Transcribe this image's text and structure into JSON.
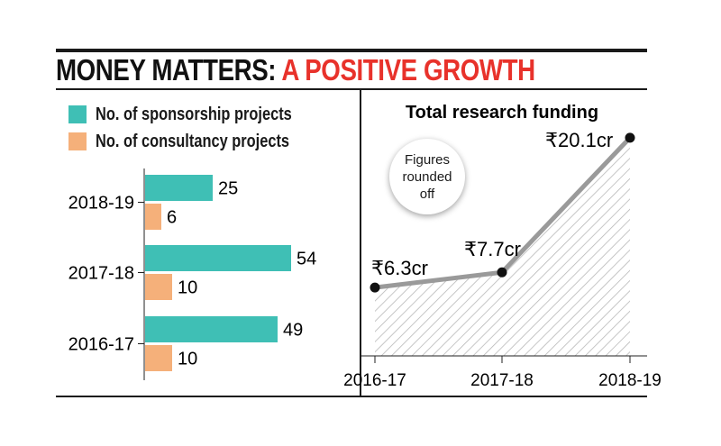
{
  "headline": {
    "part1": "MONEY MATTERS:",
    "part2": "A POSITIVE GROWTH"
  },
  "legend": [
    {
      "label": "No. of sponsorship projects",
      "color": "#3fbfb5"
    },
    {
      "label": "No. of consultancy projects",
      "color": "#f5b07a"
    }
  ],
  "note": "Figures rounded off",
  "colors": {
    "sponsorship": "#3fbfb5",
    "consultancy": "#f5b07a",
    "title_accent": "#e8322b",
    "line": "#9a9a9a"
  },
  "chart_data": [
    {
      "type": "bar",
      "orientation": "horizontal",
      "categories": [
        "2018-19",
        "2017-18",
        "2016-17"
      ],
      "series": [
        {
          "name": "No. of sponsorship projects",
          "values": [
            25,
            54,
            49
          ]
        },
        {
          "name": "No. of consultancy projects",
          "values": [
            6,
            10,
            10
          ]
        }
      ],
      "data_labels": true
    },
    {
      "type": "area",
      "title": "Total research funding",
      "categories": [
        "2016-17",
        "2017-18",
        "2018-19"
      ],
      "values": [
        6.3,
        7.7,
        20.1
      ],
      "value_labels": [
        "₹6.3cr",
        "₹7.7cr",
        "₹20.1cr"
      ],
      "unit": "₹ crore",
      "ylim": [
        0,
        21
      ],
      "fill": "hatched"
    }
  ]
}
